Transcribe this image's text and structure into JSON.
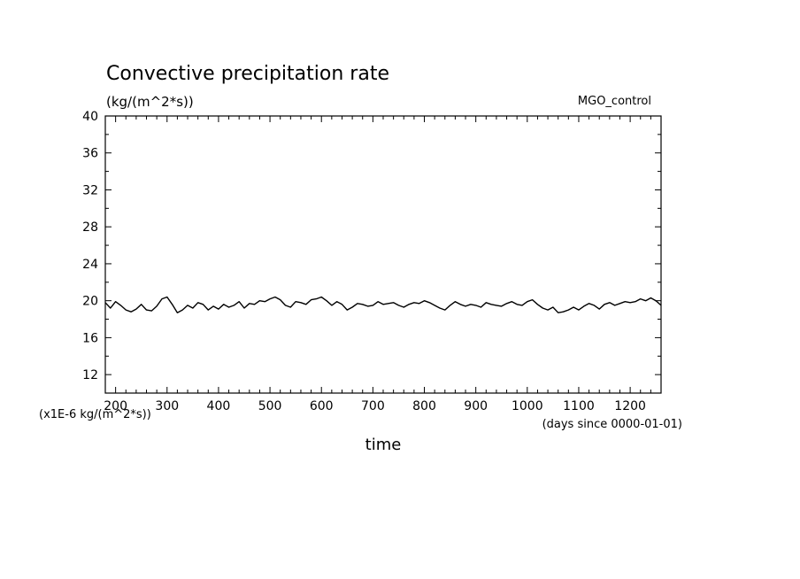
{
  "chart_data": {
    "type": "line",
    "title": "Convective precipitation rate",
    "units": "(kg/(m^2*s))",
    "legend_label": "MGO_control",
    "xlabel": "time",
    "x_units_note": "(days since 0000-01-01)",
    "y_scale_note": "(x1E-6 kg/(m^2*s))",
    "xlim": [
      180,
      1260
    ],
    "ylim": [
      10,
      40
    ],
    "x_ticks": [
      200,
      300,
      400,
      500,
      600,
      700,
      800,
      900,
      1000,
      1100,
      1200
    ],
    "y_ticks": [
      12,
      16,
      20,
      24,
      28,
      32,
      36,
      40
    ],
    "grid": false,
    "legend_position": "top-right",
    "line_color": "#000000",
    "series": [
      {
        "name": "MGO_control",
        "x": [
          180,
          190,
          200,
          210,
          220,
          230,
          240,
          250,
          260,
          270,
          280,
          290,
          300,
          310,
          320,
          330,
          340,
          350,
          360,
          370,
          380,
          390,
          400,
          410,
          420,
          430,
          440,
          450,
          460,
          470,
          480,
          490,
          500,
          510,
          520,
          530,
          540,
          550,
          560,
          570,
          580,
          590,
          600,
          610,
          620,
          630,
          640,
          650,
          660,
          670,
          680,
          690,
          700,
          710,
          720,
          730,
          740,
          750,
          760,
          770,
          780,
          790,
          800,
          810,
          820,
          830,
          840,
          850,
          860,
          870,
          880,
          890,
          900,
          910,
          920,
          930,
          940,
          950,
          960,
          970,
          980,
          990,
          1000,
          1010,
          1020,
          1030,
          1040,
          1050,
          1060,
          1070,
          1080,
          1090,
          1100,
          1110,
          1120,
          1130,
          1140,
          1150,
          1160,
          1170,
          1180,
          1190,
          1200,
          1210,
          1220,
          1230,
          1240,
          1250,
          1260
        ],
        "y": [
          19.8,
          19.2,
          19.9,
          19.5,
          19.0,
          18.8,
          19.1,
          19.6,
          19.0,
          18.9,
          19.4,
          20.2,
          20.4,
          19.6,
          18.7,
          19.0,
          19.5,
          19.2,
          19.8,
          19.6,
          19.0,
          19.4,
          19.1,
          19.6,
          19.3,
          19.5,
          19.9,
          19.2,
          19.7,
          19.6,
          20.0,
          19.9,
          20.2,
          20.4,
          20.1,
          19.5,
          19.3,
          19.9,
          19.8,
          19.6,
          20.1,
          20.2,
          20.4,
          20.0,
          19.5,
          19.9,
          19.6,
          19.0,
          19.3,
          19.7,
          19.6,
          19.4,
          19.5,
          19.9,
          19.6,
          19.7,
          19.8,
          19.5,
          19.3,
          19.6,
          19.8,
          19.7,
          20.0,
          19.8,
          19.5,
          19.2,
          19.0,
          19.5,
          19.9,
          19.6,
          19.4,
          19.6,
          19.5,
          19.3,
          19.8,
          19.6,
          19.5,
          19.4,
          19.7,
          19.9,
          19.6,
          19.5,
          19.9,
          20.1,
          19.6,
          19.2,
          19.0,
          19.3,
          18.7,
          18.8,
          19.0,
          19.3,
          19.0,
          19.4,
          19.7,
          19.5,
          19.1,
          19.6,
          19.8,
          19.5,
          19.7,
          19.9,
          19.8,
          19.9,
          20.2,
          20.0,
          20.3,
          20.0,
          19.5
        ]
      }
    ]
  }
}
